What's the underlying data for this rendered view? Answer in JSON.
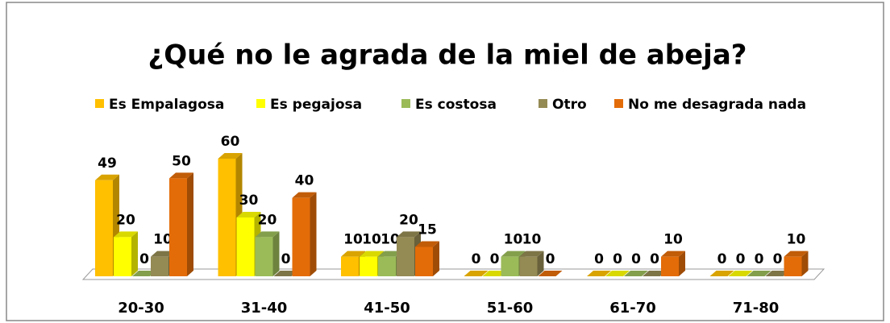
{
  "chart_data": {
    "type": "bar3d",
    "title": "¿Qué no le agrada de la miel de abeja?",
    "categories": [
      "20-30",
      "31-40",
      "41-50",
      "51-60",
      "61-70",
      "71-80"
    ],
    "series": [
      {
        "name": "Es Empalagosa",
        "color": "#FFC000",
        "values": [
          49,
          60,
          10,
          0,
          0,
          0
        ]
      },
      {
        "name": "Es pegajosa",
        "color": "#FFFF00",
        "values": [
          20,
          30,
          10,
          0,
          0,
          0
        ]
      },
      {
        "name": "Es costosa",
        "color": "#9BBB59",
        "values": [
          0,
          20,
          10,
          10,
          0,
          0
        ]
      },
      {
        "name": "Otro",
        "color": "#948A54",
        "values": [
          10,
          0,
          20,
          10,
          0,
          0
        ]
      },
      {
        "name": "No me desagrada nada",
        "color": "#E36C09",
        "values": [
          50,
          40,
          15,
          0,
          10,
          10
        ]
      }
    ],
    "legend": "top"
  }
}
